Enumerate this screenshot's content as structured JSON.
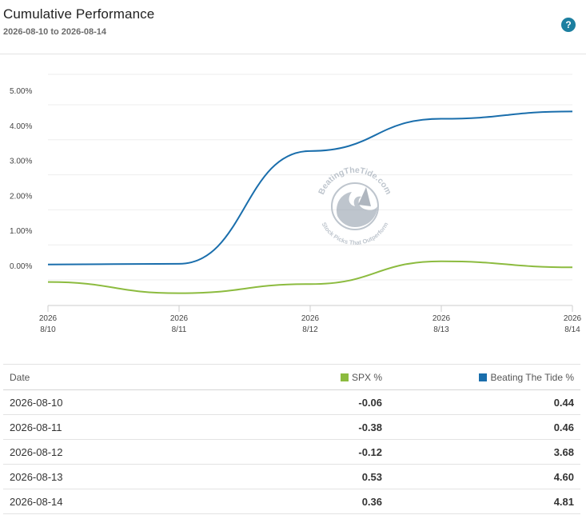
{
  "header": {
    "title": "Cumulative Performance",
    "subtitle": "2026-08-10 to 2026-08-14",
    "help_label": "?"
  },
  "watermark": {
    "name": "BeatingTheTide.com",
    "tagline": "Stock Picks That Outperform"
  },
  "chart_data": {
    "type": "line",
    "categories": [
      "2026-08-10",
      "2026-08-11",
      "2026-08-12",
      "2026-08-13",
      "2026-08-14"
    ],
    "x_tick_labels": [
      {
        "year": "2026",
        "day": "8/10"
      },
      {
        "year": "2026",
        "day": "8/11"
      },
      {
        "year": "2026",
        "day": "8/12"
      },
      {
        "year": "2026",
        "day": "8/13"
      },
      {
        "year": "2026",
        "day": "8/14"
      }
    ],
    "y_tick_labels": [
      "0.00%",
      "1.00%",
      "2.00%",
      "3.00%",
      "4.00%",
      "5.00%"
    ],
    "y_ticks": [
      0,
      1,
      2,
      3,
      4,
      5
    ],
    "ylim": [
      -0.6,
      6
    ],
    "grid": true,
    "series": [
      {
        "name": "SPX %",
        "color": "#8cbb3f",
        "values": [
          -0.06,
          -0.38,
          -0.12,
          0.53,
          0.36
        ]
      },
      {
        "name": "Beating The Tide %",
        "color": "#1a6eac",
        "values": [
          0.44,
          0.46,
          3.68,
          4.6,
          4.81
        ]
      }
    ]
  },
  "table": {
    "headers": {
      "date": "Date",
      "spx": "SPX %",
      "btt": "Beating The Tide %"
    },
    "rows": [
      {
        "date": "2026-08-10",
        "spx": "-0.06",
        "btt": "0.44"
      },
      {
        "date": "2026-08-11",
        "spx": "-0.38",
        "btt": "0.46"
      },
      {
        "date": "2026-08-12",
        "spx": "-0.12",
        "btt": "3.68"
      },
      {
        "date": "2026-08-13",
        "spx": "0.53",
        "btt": "4.60"
      },
      {
        "date": "2026-08-14",
        "spx": "0.36",
        "btt": "4.81"
      }
    ]
  }
}
